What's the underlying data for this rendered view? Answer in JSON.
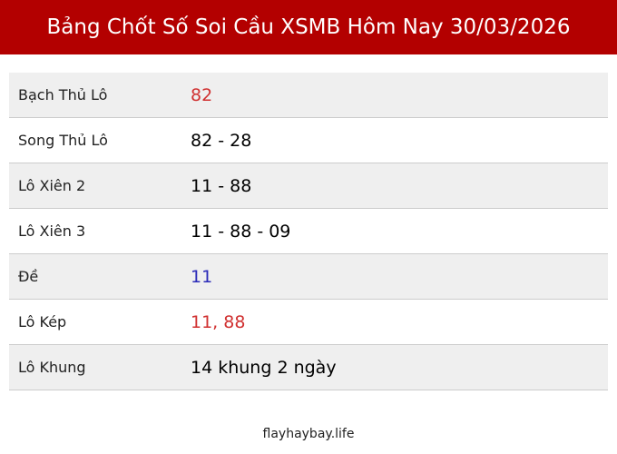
{
  "header": {
    "title": "Bảng Chốt Số Soi Cầu XSMB Hôm Nay 30/03/2026"
  },
  "table": {
    "rows": [
      {
        "label": "Bạch Thủ Lô",
        "value": "82",
        "color": "#d03030"
      },
      {
        "label": "Song Thủ Lô",
        "value": "82 - 28",
        "color": "#000000"
      },
      {
        "label": "Lô Xiên 2",
        "value": "11 - 88",
        "color": "#000000"
      },
      {
        "label": "Lô Xiên 3",
        "value": "11 - 88 - 09",
        "color": "#000000"
      },
      {
        "label": "Đề",
        "value": "11",
        "color": "#2a2ab8"
      },
      {
        "label": "Lô Kép",
        "value": "11, 88",
        "color": "#d03030"
      },
      {
        "label": "Lô Khung",
        "value": "14 khung 2 ngày",
        "color": "#000000"
      }
    ]
  },
  "footer": {
    "text": "flayhaybay.life"
  }
}
